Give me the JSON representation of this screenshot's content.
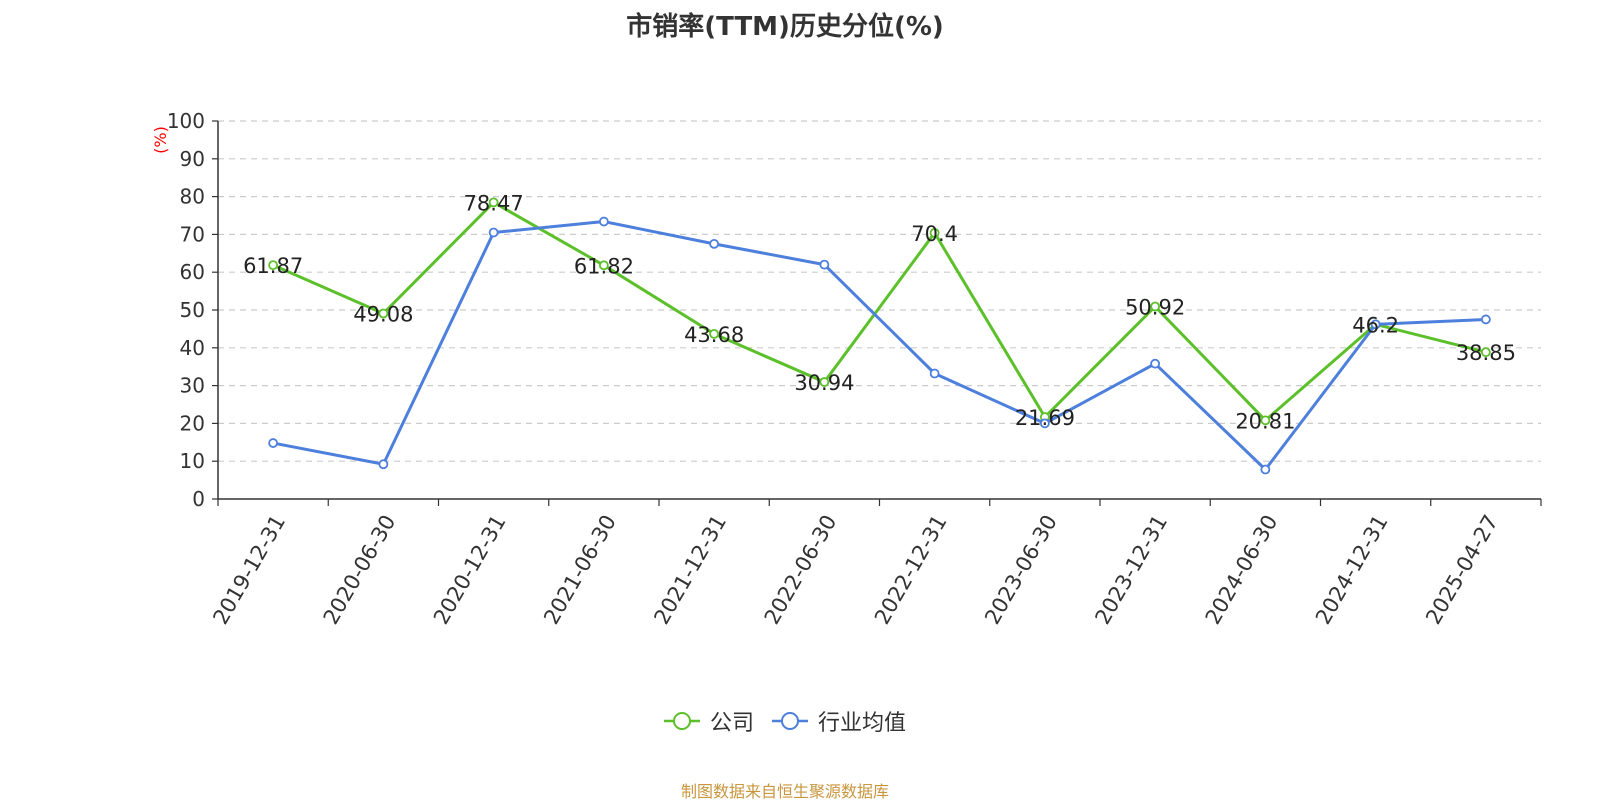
{
  "chart_data": {
    "type": "line",
    "title": "市销率(TTM)历史分位(%)",
    "ylabel": "(%)",
    "xlabel": "",
    "ylim": [
      0,
      100
    ],
    "yticks": [
      0,
      10,
      20,
      30,
      40,
      50,
      60,
      70,
      80,
      90,
      100
    ],
    "grid": true,
    "legend_position": "bottom",
    "categories": [
      "2019-12-31",
      "2020-06-30",
      "2020-12-31",
      "2021-06-30",
      "2021-12-31",
      "2022-06-30",
      "2022-12-31",
      "2023-06-30",
      "2023-12-31",
      "2024-06-30",
      "2024-12-31",
      "2025-04-27"
    ],
    "series": [
      {
        "name": "公司",
        "color": "#5cc02a",
        "values": [
          61.87,
          49.08,
          78.47,
          61.82,
          43.68,
          30.94,
          70.4,
          21.69,
          50.92,
          20.81,
          46.2,
          38.85
        ],
        "labels": [
          "61.87",
          "49.08",
          "78.47",
          "61.82",
          "43.68",
          "30.94",
          "70.4",
          "21.69",
          "50.92",
          "20.81",
          "46.2",
          "38.85"
        ]
      },
      {
        "name": "行业均值",
        "color": "#4d7fdc",
        "values": [
          14.8,
          9.2,
          70.5,
          73.4,
          67.5,
          62.0,
          33.2,
          20.0,
          35.8,
          7.8,
          46.2,
          47.5
        ]
      }
    ]
  },
  "footer": "制图数据来自恒生聚源数据库"
}
